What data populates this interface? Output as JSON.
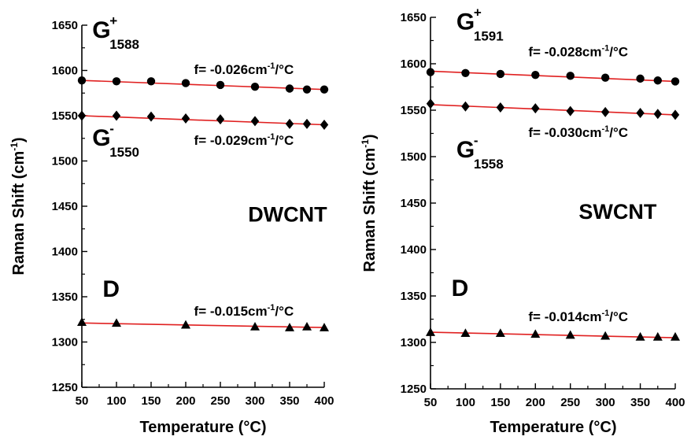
{
  "chart_data": [
    {
      "type": "scatter",
      "panel_label": "DWCNT",
      "xlabel": "Temperature (°C)",
      "ylabel": "Raman Shift (cm",
      "ylabel_sup": "-1",
      "ylabel_close": ")",
      "xlim": [
        50,
        400
      ],
      "ylim": [
        1250,
        1650
      ],
      "xticks": [
        50,
        100,
        150,
        200,
        250,
        300,
        350,
        400
      ],
      "yticks": [
        1250,
        1300,
        1350,
        1400,
        1450,
        1500,
        1550,
        1600,
        1650
      ],
      "grid": false,
      "fit_color": "#e02020",
      "series": [
        {
          "name": "G+",
          "marker": "circle",
          "x": [
            50,
            100,
            150,
            200,
            250,
            300,
            350,
            375,
            400
          ],
          "y": [
            1589,
            1588,
            1588,
            1586,
            1584,
            1582,
            1580,
            1579,
            1579
          ],
          "fit": [
            [
              50,
              1589
            ],
            [
              400,
              1579
            ]
          ],
          "label_main": "G",
          "label_sup": "+",
          "label_sub": "1588",
          "label_at": [
            65,
            1636
          ],
          "slope_text": "f= -0.026cm",
          "slope_sup": "-1",
          "slope_unit": "/°C",
          "slope_at": [
            212,
            1596
          ]
        },
        {
          "name": "G-",
          "marker": "diamond",
          "x": [
            50,
            100,
            150,
            200,
            250,
            300,
            350,
            375,
            400
          ],
          "y": [
            1550,
            1550,
            1549,
            1547,
            1546,
            1544,
            1541,
            1541,
            1540
          ],
          "fit": [
            [
              50,
              1550
            ],
            [
              400,
              1540
            ]
          ],
          "label_main": "G",
          "label_sup": "-",
          "label_sub": "1550",
          "label_at": [
            65,
            1517
          ],
          "slope_text": "f= -0.029cm",
          "slope_sup": "-1",
          "slope_unit": "/°C",
          "slope_at": [
            212,
            1518
          ]
        },
        {
          "name": "D",
          "marker": "triangle",
          "x": [
            50,
            100,
            200,
            300,
            350,
            375,
            400
          ],
          "y": [
            1322,
            1321,
            1319,
            1317,
            1316,
            1317,
            1316
          ],
          "fit": [
            [
              50,
              1321
            ],
            [
              400,
              1316
            ]
          ],
          "label_main": "D",
          "label_sup": "",
          "label_sub": "",
          "label_at": [
            80,
            1350
          ],
          "slope_text": "f= -0.015cm",
          "slope_sup": "-1",
          "slope_unit": "/°C",
          "slope_at": [
            212,
            1329
          ]
        }
      ],
      "panel_label_at": [
        290,
        1433
      ]
    },
    {
      "type": "scatter",
      "panel_label": "SWCNT",
      "xlabel": "Temperature (°C)",
      "ylabel": "Raman Shift (cm",
      "ylabel_sup": "-1",
      "ylabel_close": ")",
      "xlim": [
        50,
        400
      ],
      "ylim": [
        1250,
        1650
      ],
      "xticks": [
        50,
        100,
        150,
        200,
        250,
        300,
        350,
        400
      ],
      "yticks": [
        1250,
        1300,
        1350,
        1400,
        1450,
        1500,
        1550,
        1600,
        1650
      ],
      "grid": false,
      "fit_color": "#e02020",
      "series": [
        {
          "name": "G+",
          "marker": "circle",
          "x": [
            50,
            100,
            150,
            200,
            250,
            300,
            350,
            375,
            400
          ],
          "y": [
            1591,
            1590,
            1589,
            1588,
            1587,
            1585,
            1584,
            1582,
            1581
          ],
          "fit": [
            [
              50,
              1592
            ],
            [
              400,
              1581
            ]
          ],
          "label_main": "G",
          "label_sup": "+",
          "label_sub": "1591",
          "label_at": [
            87,
            1637
          ],
          "slope_text": "f= -0.028cm",
          "slope_sup": "-1",
          "slope_unit": "/°C",
          "slope_at": [
            190,
            1608
          ]
        },
        {
          "name": "G-",
          "marker": "diamond",
          "x": [
            50,
            100,
            150,
            200,
            250,
            300,
            350,
            375,
            400
          ],
          "y": [
            1557,
            1554,
            1553,
            1552,
            1549,
            1548,
            1547,
            1546,
            1545
          ],
          "fit": [
            [
              50,
              1556
            ],
            [
              400,
              1545
            ]
          ],
          "label_main": "G",
          "label_sup": "-",
          "label_sub": "1558",
          "label_at": [
            87,
            1499
          ],
          "slope_text": "f= -0.030cm",
          "slope_sup": "-1",
          "slope_unit": "/°C",
          "slope_at": [
            190,
            1521
          ]
        },
        {
          "name": "D",
          "marker": "triangle",
          "x": [
            50,
            100,
            150,
            200,
            250,
            300,
            350,
            375,
            400
          ],
          "y": [
            1311,
            1310,
            1310,
            1309,
            1308,
            1307,
            1306,
            1306,
            1306
          ],
          "fit": [
            [
              50,
              1311
            ],
            [
              400,
              1305
            ]
          ],
          "label_main": "D",
          "label_sup": "",
          "label_sub": "",
          "label_at": [
            80,
            1350
          ],
          "slope_text": "f= -0.014cm",
          "slope_sup": "-1",
          "slope_unit": "/°C",
          "slope_at": [
            190,
            1323
          ]
        }
      ],
      "panel_label_at": [
        262,
        1433
      ]
    }
  ]
}
